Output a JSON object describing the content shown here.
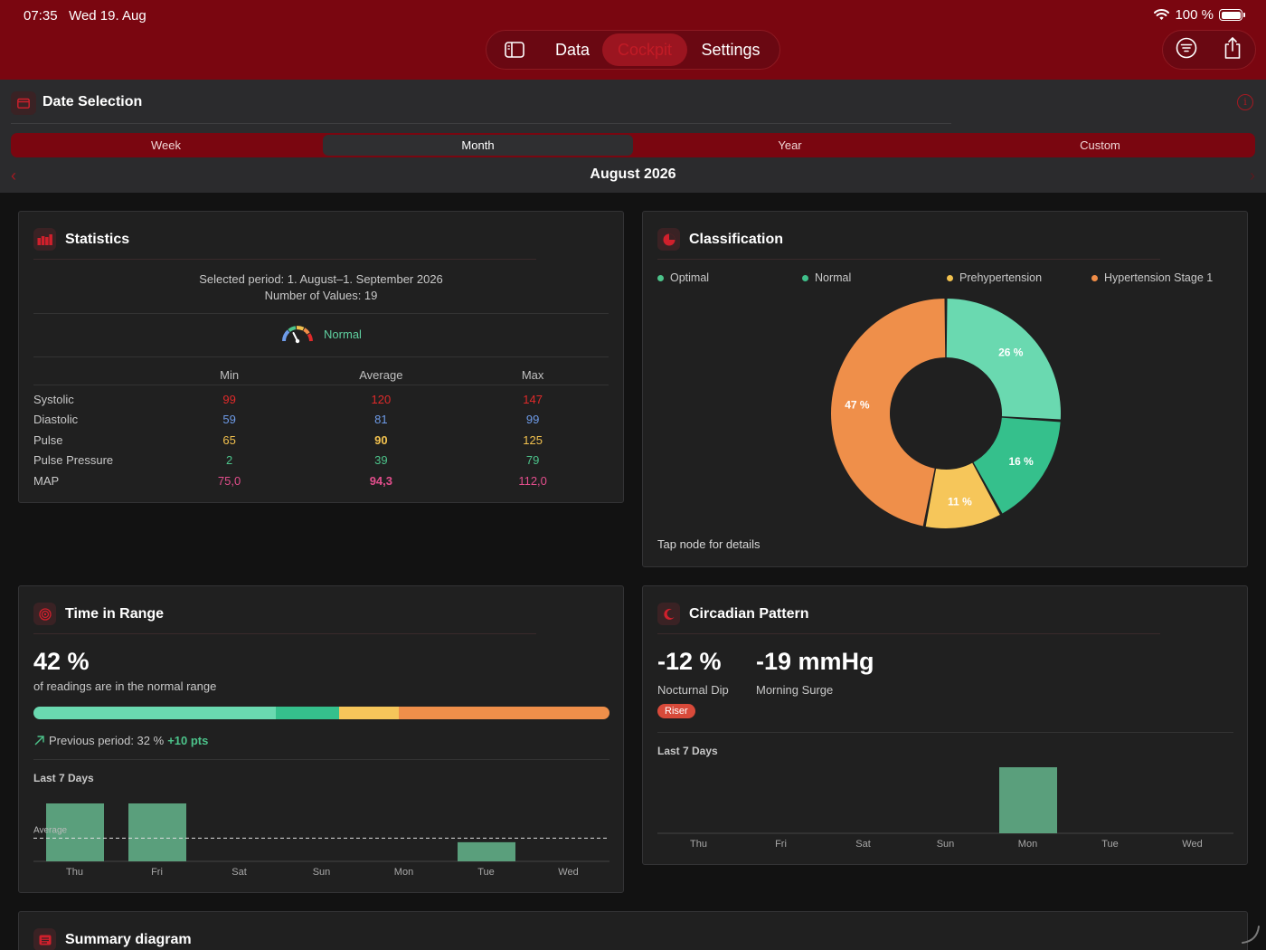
{
  "status_bar": {
    "time": "07:35",
    "date": "Wed 19. Aug",
    "battery": "100 %"
  },
  "nav": {
    "tabs": [
      "Data",
      "Cockpit",
      "Settings"
    ],
    "active": "Cockpit"
  },
  "date_selection": {
    "title": "Date Selection",
    "segments": [
      "Week",
      "Month",
      "Year",
      "Custom"
    ],
    "active_segment": "Month",
    "current_period": "August 2026"
  },
  "statistics": {
    "title": "Statistics",
    "period_text": "Selected period: 1. August–1. September 2026",
    "count_text": "Number of Values: 19",
    "category": "Normal",
    "columns": [
      "Min",
      "Average",
      "Max"
    ],
    "rows": [
      {
        "label": "Systolic",
        "min": "99",
        "avg": "120",
        "max": "147",
        "color": "#e02a2a"
      },
      {
        "label": "Diastolic",
        "min": "59",
        "avg": "81",
        "max": "99",
        "color": "#6e9be8"
      },
      {
        "label": "Pulse",
        "min": "65",
        "avg": "90",
        "max": "125",
        "color": "#f2c14e"
      },
      {
        "label": "Pulse Pressure",
        "min": "2",
        "avg": "39",
        "max": "79",
        "color": "#4cc38a"
      },
      {
        "label": "MAP",
        "min": "75,0",
        "avg": "94,3",
        "max": "112,0",
        "color": "#e24e8c"
      }
    ]
  },
  "classification": {
    "title": "Classification",
    "legend": [
      {
        "name": "Optimal",
        "color": "#4cc38a"
      },
      {
        "name": "Normal",
        "color": "#3fbf8a"
      },
      {
        "name": "Prehypertension",
        "color": "#f2c14e"
      },
      {
        "name": "Hypertension Stage 1",
        "color": "#ef8c47"
      }
    ],
    "slices": [
      {
        "label": "26 %",
        "value": 26,
        "color": "#6ad9b0"
      },
      {
        "label": "16 %",
        "value": 16,
        "color": "#35c08c"
      },
      {
        "label": "11 %",
        "value": 11,
        "color": "#f6c65a"
      },
      {
        "label": "47 %",
        "value": 47,
        "color": "#ef8f4a"
      }
    ],
    "hint": "Tap node for details"
  },
  "time_in_range": {
    "title": "Time in Range",
    "value": "42 %",
    "subtitle": "of readings are in the normal range",
    "segments": [
      {
        "fraction": 0.42,
        "color": "#6ad9b0"
      },
      {
        "fraction": 0.11,
        "color": "#35c08c"
      },
      {
        "fraction": 0.105,
        "color": "#f6c65a"
      },
      {
        "fraction": 0.475,
        "color": "#ef8f4a"
      }
    ],
    "previous_label": "Previous period: 32 %",
    "delta": "+10 pts",
    "chart_label": "Last 7 Days",
    "average_label": "Average",
    "days": [
      "Thu",
      "Fri",
      "Sat",
      "Sun",
      "Mon",
      "Tue",
      "Wed"
    ],
    "day_values": [
      100,
      100,
      0,
      0,
      0,
      33,
      0
    ],
    "average_value": 40
  },
  "circadian": {
    "title": "Circadian Pattern",
    "dip_value": "-12 %",
    "dip_label": "Nocturnal Dip",
    "surge_value": "-19 mmHg",
    "surge_label": "Morning Surge",
    "badge": "Riser",
    "chart_label": "Last 7 Days",
    "days": [
      "Thu",
      "Fri",
      "Sat",
      "Sun",
      "Mon",
      "Tue",
      "Wed"
    ],
    "day_values": [
      0,
      0,
      0,
      0,
      1,
      0,
      0
    ]
  },
  "summary": {
    "title": "Summary diagram"
  }
}
